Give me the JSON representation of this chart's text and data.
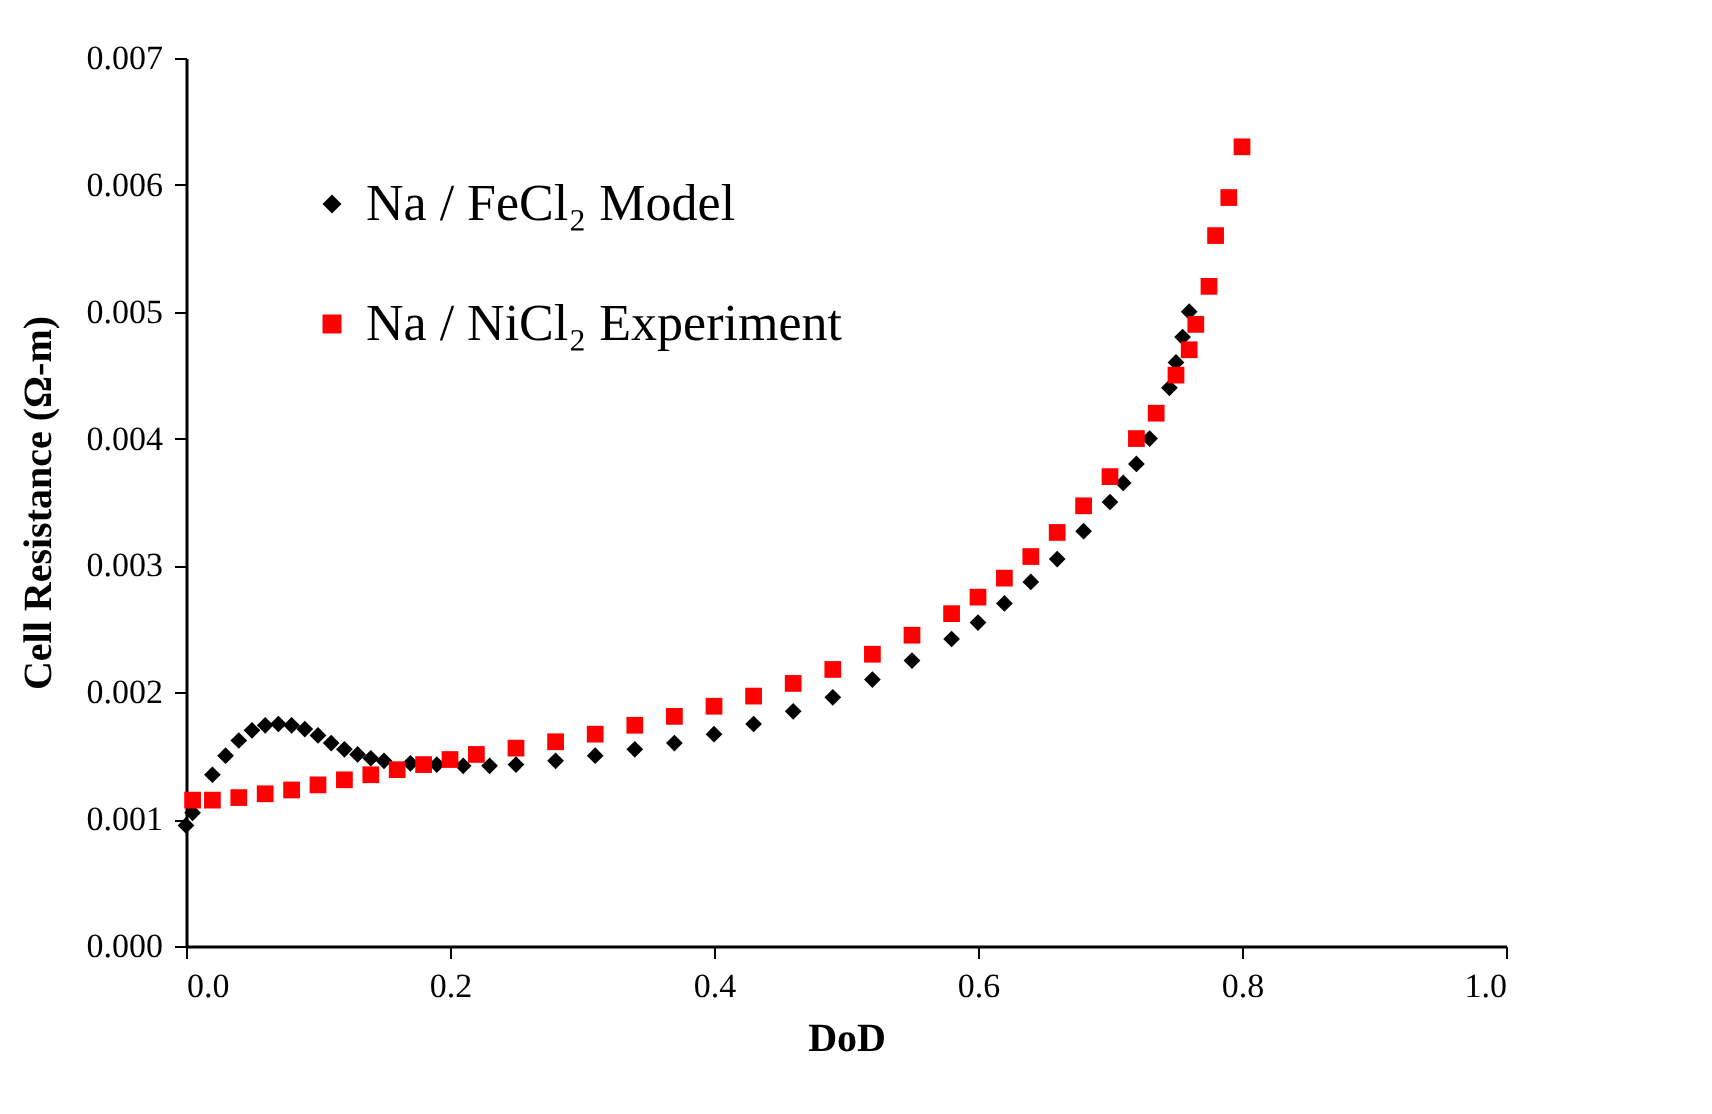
{
  "chart_data": {
    "type": "scatter",
    "xlabel": "DoD",
    "ylabel": "Cell Resistance (Ω-m)",
    "xlim": [
      0,
      1
    ],
    "ylim": [
      0,
      0.007
    ],
    "xticks": [
      {
        "value": 0,
        "label": "0.0"
      },
      {
        "value": 0.2,
        "label": "0.2"
      },
      {
        "value": 0.4,
        "label": "0.4"
      },
      {
        "value": 0.6,
        "label": "0.6"
      },
      {
        "value": 0.8,
        "label": "0.8"
      },
      {
        "value": 1,
        "label": "1.0"
      }
    ],
    "yticks": [
      {
        "value": 0,
        "label": "0.000"
      },
      {
        "value": 0.001,
        "label": "0.001"
      },
      {
        "value": 0.002,
        "label": "0.002"
      },
      {
        "value": 0.003,
        "label": "0.003"
      },
      {
        "value": 0.004,
        "label": "0.004"
      },
      {
        "value": 0.005,
        "label": "0.005"
      },
      {
        "value": 0.006,
        "label": "0.006"
      },
      {
        "value": 0.007,
        "label": "0.007"
      }
    ],
    "grid": false,
    "legend": "top left",
    "series": [
      {
        "name": "Na / FeCl₂   Model",
        "color": "#000000",
        "marker": "diamond",
        "x": [
          0,
          0.005,
          0.02,
          0.03,
          0.04,
          0.05,
          0.06,
          0.07,
          0.08,
          0.09,
          0.1,
          0.11,
          0.12,
          0.13,
          0.14,
          0.15,
          0.17,
          0.19,
          0.21,
          0.23,
          0.25,
          0.28,
          0.31,
          0.34,
          0.37,
          0.4,
          0.43,
          0.46,
          0.49,
          0.52,
          0.55,
          0.58,
          0.6,
          0.62,
          0.64,
          0.66,
          0.68,
          0.7,
          0.71,
          0.72,
          0.73,
          0.745,
          0.75,
          0.755,
          0.76
        ],
        "values": [
          0.00095,
          0.00105,
          0.00135,
          0.0015,
          0.00162,
          0.0017,
          0.00174,
          0.00175,
          0.00174,
          0.00171,
          0.00166,
          0.0016,
          0.00155,
          0.00151,
          0.00148,
          0.00146,
          0.00144,
          0.00143,
          0.00142,
          0.00142,
          0.00143,
          0.00146,
          0.0015,
          0.00155,
          0.0016,
          0.00167,
          0.00175,
          0.00185,
          0.00196,
          0.0021,
          0.00225,
          0.00242,
          0.00255,
          0.0027,
          0.00287,
          0.00305,
          0.00327,
          0.0035,
          0.00365,
          0.0038,
          0.004,
          0.0044,
          0.0046,
          0.0048,
          0.005
        ]
      },
      {
        "name": "Na / NiCl₂   Experiment",
        "color": "#ff0000",
        "marker": "square",
        "x": [
          0.005,
          0.02,
          0.04,
          0.06,
          0.08,
          0.1,
          0.12,
          0.14,
          0.16,
          0.18,
          0.2,
          0.22,
          0.25,
          0.28,
          0.31,
          0.34,
          0.37,
          0.4,
          0.43,
          0.46,
          0.49,
          0.52,
          0.55,
          0.58,
          0.6,
          0.62,
          0.64,
          0.66,
          0.68,
          0.7,
          0.72,
          0.735,
          0.75,
          0.76,
          0.765,
          0.775,
          0.78,
          0.79,
          0.8
        ],
        "values": [
          0.00115,
          0.00115,
          0.00117,
          0.0012,
          0.00123,
          0.00127,
          0.00131,
          0.00135,
          0.00139,
          0.00143,
          0.00147,
          0.00151,
          0.00156,
          0.00161,
          0.00167,
          0.00174,
          0.00181,
          0.00189,
          0.00197,
          0.00207,
          0.00218,
          0.0023,
          0.00245,
          0.00262,
          0.00275,
          0.0029,
          0.00307,
          0.00326,
          0.00347,
          0.0037,
          0.004,
          0.0042,
          0.0045,
          0.0047,
          0.0049,
          0.0052,
          0.0056,
          0.0059,
          0.0063
        ]
      }
    ]
  }
}
